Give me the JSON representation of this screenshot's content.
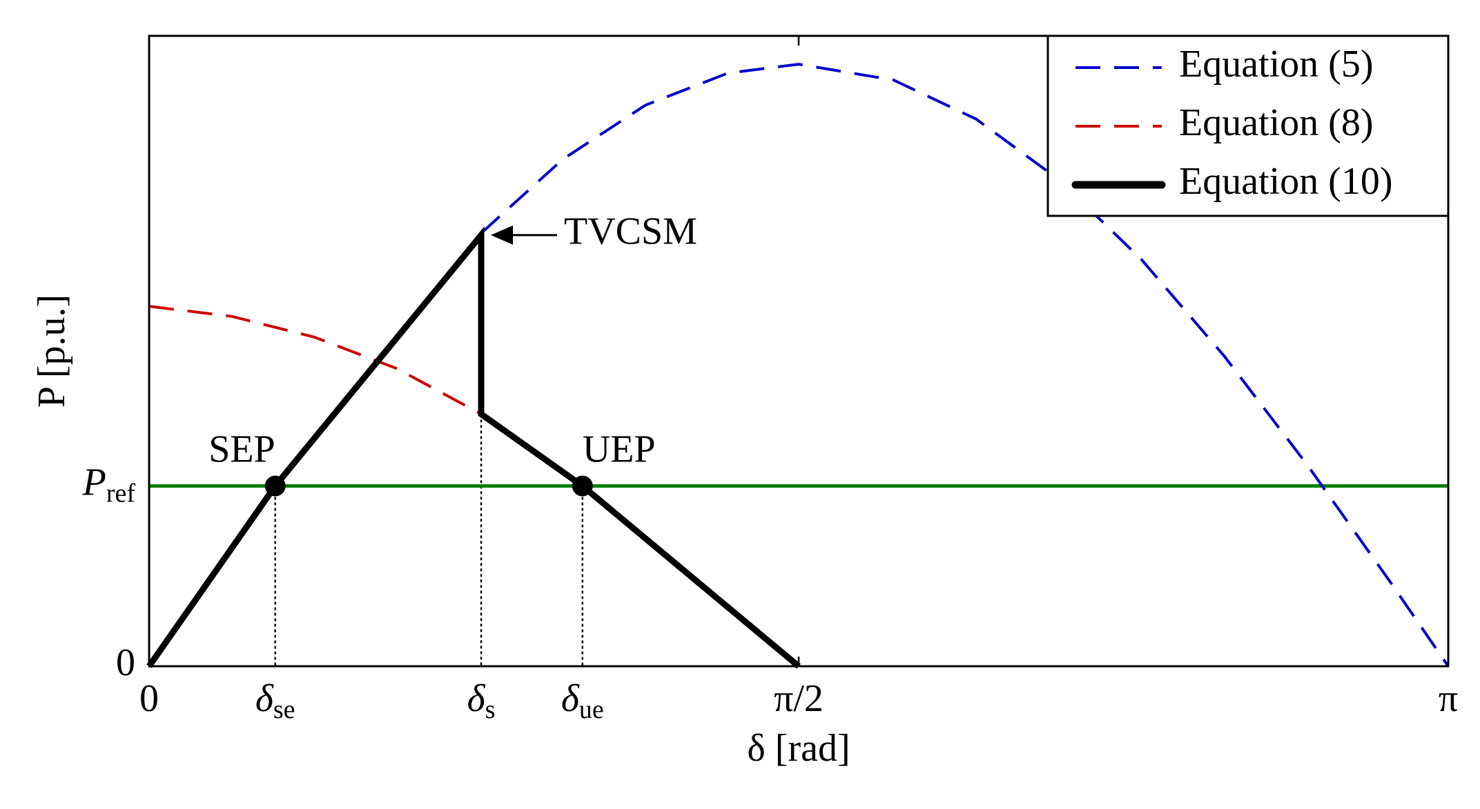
{
  "chart_data": {
    "type": "line",
    "xlabel": "δ [rad]",
    "ylabel": "P [p.u.]",
    "xlim": [
      0,
      3.1416
    ],
    "ylim": [
      0,
      1
    ],
    "xticks": [
      0,
      {
        "value": 0.305,
        "label": "δ",
        "sub": "se"
      },
      {
        "value": 0.803,
        "label": "δ",
        "sub": "s"
      },
      {
        "value": 1.048,
        "label": "δ",
        "sub": "ue"
      },
      {
        "value": 1.5708,
        "label": "π/2"
      },
      {
        "value": 3.1416,
        "label": "π"
      }
    ],
    "yticks": [
      0,
      {
        "value": 0.286,
        "label": "P",
        "sub": "ref"
      }
    ],
    "legend": "upper right",
    "series": [
      {
        "name": "Equation (5)",
        "color": "#0000cc",
        "dashed": true,
        "x": [
          0.803,
          1.0,
          1.2,
          1.4,
          1.5708,
          1.8,
          2.0,
          2.2,
          2.4,
          2.6,
          2.8,
          3.0,
          3.1416
        ],
        "values": [
          0.687,
          0.804,
          0.89,
          0.941,
          0.955,
          0.93,
          0.868,
          0.772,
          0.645,
          0.492,
          0.32,
          0.135,
          0
        ]
      },
      {
        "name": "Equation (8)",
        "color": "#cc0000",
        "dashed": true,
        "x": [
          0,
          0.2,
          0.4,
          0.6,
          0.803
        ],
        "values": [
          0.571,
          0.555,
          0.522,
          0.472,
          0.4
        ]
      },
      {
        "name": "Equation (10)",
        "color": "#000000",
        "dashed": false,
        "x": [
          0,
          0.305,
          0.803,
          0.803,
          1.048,
          1.5708
        ],
        "values": [
          0,
          0.286,
          0.684,
          0.4,
          0.286,
          0
        ]
      }
    ],
    "reference": {
      "value": 0.286,
      "color": "#008000"
    },
    "points": [
      {
        "label": "SEP",
        "x": 0.305,
        "y": 0.286
      },
      {
        "label": "UEP",
        "x": 1.048,
        "y": 0.286
      }
    ],
    "annotation": {
      "text": "TVCSM",
      "x": 0.803,
      "y": 0.684
    }
  }
}
